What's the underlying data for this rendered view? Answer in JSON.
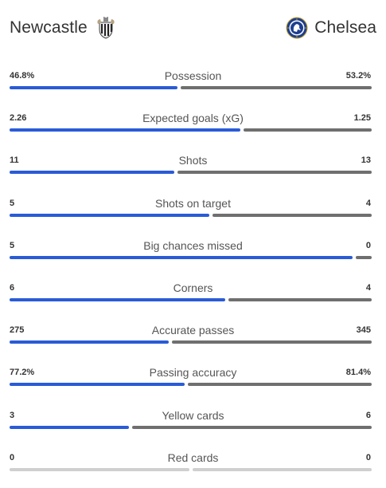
{
  "match": {
    "home_team": "Newcastle",
    "away_team": "Chelsea",
    "home_crest_icon": "newcastle-crest-icon",
    "away_crest_icon": "chelsea-crest-icon"
  },
  "colors": {
    "home_bar": "#2a5bd7",
    "away_bar": "#6f6f6f",
    "empty_bar": "#cfcfcf"
  },
  "stats": [
    {
      "label": "Possession",
      "home": "46.8%",
      "away": "53.2%",
      "home_share": 0.468
    },
    {
      "label": "Expected goals (xG)",
      "home": "2.26",
      "away": "1.25",
      "home_share": 0.644
    },
    {
      "label": "Shots",
      "home": "11",
      "away": "13",
      "home_share": 0.458
    },
    {
      "label": "Shots on target",
      "home": "5",
      "away": "4",
      "home_share": 0.556
    },
    {
      "label": "Big chances missed",
      "home": "5",
      "away": "0",
      "home_share": 1.0
    },
    {
      "label": "Corners",
      "home": "6",
      "away": "4",
      "home_share": 0.6
    },
    {
      "label": "Accurate passes",
      "home": "275",
      "away": "345",
      "home_share": 0.444
    },
    {
      "label": "Passing accuracy",
      "home": "77.2%",
      "away": "81.4%",
      "home_share": 0.487
    },
    {
      "label": "Yellow cards",
      "home": "3",
      "away": "6",
      "home_share": 0.333
    },
    {
      "label": "Red cards",
      "home": "0",
      "away": "0",
      "home_share": null
    }
  ]
}
